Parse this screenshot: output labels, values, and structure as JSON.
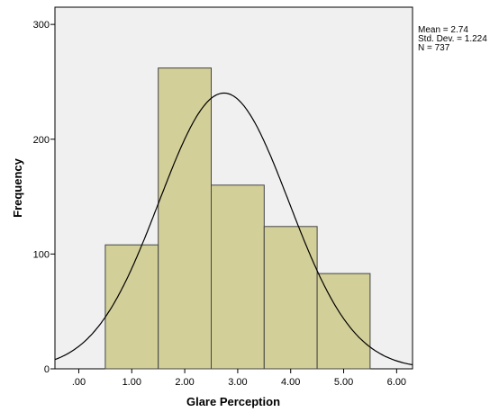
{
  "chart_data": {
    "type": "bar",
    "xlabel": "Glare Perception",
    "ylabel": "Frequency",
    "bins": [
      {
        "from": 0.5,
        "to": 1.5,
        "count": 108
      },
      {
        "from": 1.5,
        "to": 2.5,
        "count": 262
      },
      {
        "from": 2.5,
        "to": 3.5,
        "count": 160
      },
      {
        "from": 3.5,
        "to": 4.5,
        "count": 124
      },
      {
        "from": 4.5,
        "to": 5.5,
        "count": 83
      }
    ],
    "x_ticks": [
      ".00",
      "1.00",
      "2.00",
      "3.00",
      "4.00",
      "5.00",
      "6.00"
    ],
    "x_tick_values": [
      0,
      1,
      2,
      3,
      4,
      5,
      6
    ],
    "y_ticks": [
      "0",
      "100",
      "200",
      "300"
    ],
    "y_tick_values": [
      0,
      100,
      200,
      300
    ],
    "xlim": [
      -0.45,
      6.3
    ],
    "ylim": [
      0,
      315
    ],
    "normal_curve": {
      "mean": 2.74,
      "sd": 1.224,
      "n": 737,
      "bin_width": 1
    },
    "stats": {
      "mean_label": "Mean = 2.74",
      "sd_label": "Std. Dev. = 1.224",
      "n_label": "N = 737"
    },
    "colors": {
      "bar_fill": "#d3cf99",
      "bar_stroke": "#444444",
      "plot_bg": "#f0f0f0",
      "curve": "#000000"
    }
  }
}
